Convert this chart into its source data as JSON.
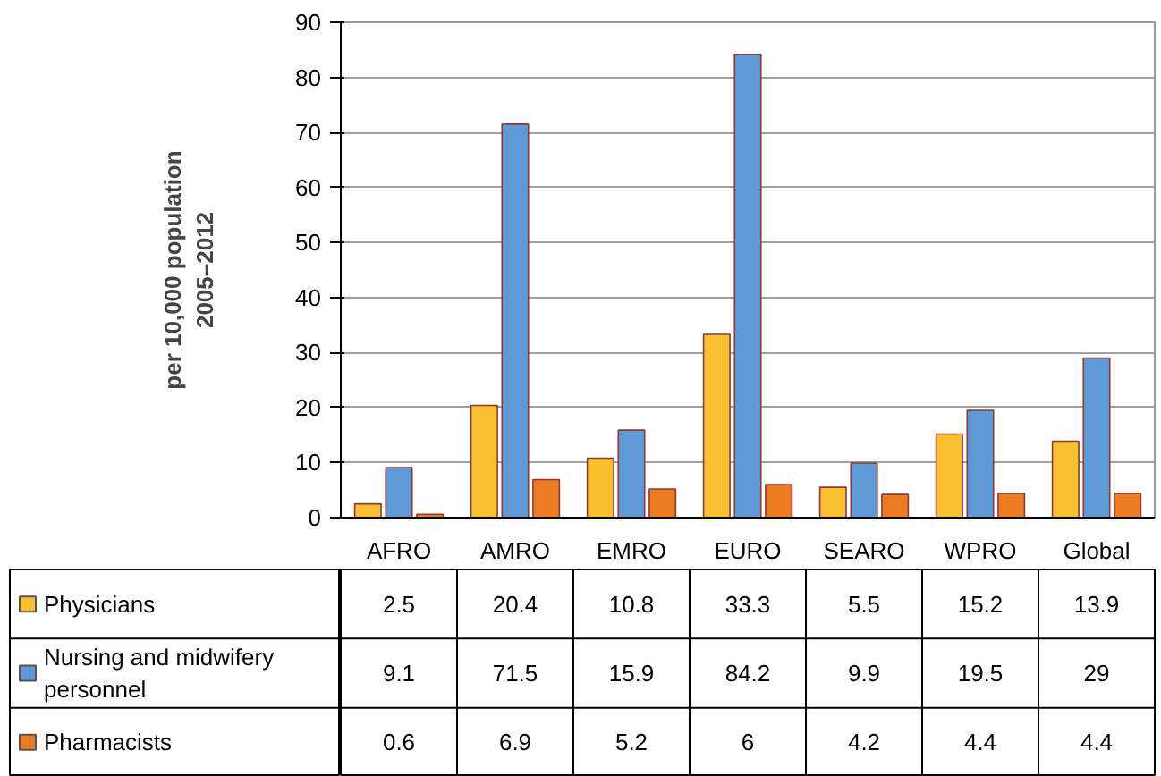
{
  "chart_data": {
    "type": "bar",
    "ylabel": "per 10,000 population\n2005–2012",
    "categories": [
      "AFRO",
      "AMRO",
      "EMRO",
      "EURO",
      "SEARO",
      "WPRO",
      "Global"
    ],
    "series": [
      {
        "name": "Physicians",
        "color": "#f9c132",
        "values": [
          2.5,
          20.4,
          10.8,
          33.3,
          5.5,
          15.2,
          13.9
        ]
      },
      {
        "name": "Nursing and midwifery\npersonnel",
        "color": "#5f9ad6",
        "values": [
          9.1,
          71.5,
          15.9,
          84.2,
          9.9,
          19.5,
          29
        ]
      },
      {
        "name": "Pharmacists",
        "color": "#ec7b22",
        "values": [
          0.6,
          6.9,
          5.2,
          6,
          4.2,
          4.4,
          4.4
        ]
      }
    ],
    "ylim": [
      0,
      90
    ],
    "yticks": [
      0,
      10,
      20,
      30,
      40,
      50,
      60,
      70,
      80,
      90
    ],
    "grid": "y",
    "legend": "bottom",
    "data_labels": true
  }
}
